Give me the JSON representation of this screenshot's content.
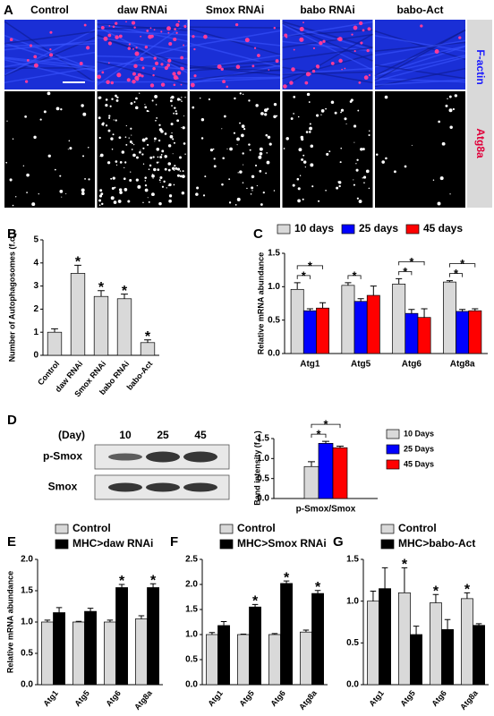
{
  "panel_a": {
    "letter": "A",
    "columns": [
      "Control",
      "daw RNAi",
      "Smox RNAi",
      "babo RNAi",
      "babo-Act"
    ],
    "rows": [
      "F-actin",
      "Atg8a"
    ]
  },
  "blot": {
    "letter": "D",
    "header": "(Day)",
    "lanes": [
      "10",
      "25",
      "45"
    ],
    "rows": [
      "p-Smox",
      "Smox"
    ]
  },
  "chart_data": [
    {
      "type": "bar",
      "letter": "B",
      "ylabel": "Number of Autophagosomes (f.c.)",
      "categories": [
        "Control",
        "daw RNAi",
        "Smox RNAi",
        "babo RNAi",
        "babo-Act"
      ],
      "values": [
        1.0,
        3.55,
        2.55,
        2.45,
        0.55
      ],
      "errors": [
        0.15,
        0.35,
        0.25,
        0.2,
        0.12
      ],
      "markers": [
        null,
        "*",
        "*",
        "*",
        "*"
      ],
      "color": "#d9d9d9",
      "ylim": [
        0,
        5
      ],
      "yticks": [
        0,
        1,
        2,
        3,
        4,
        5
      ]
    },
    {
      "type": "bar",
      "letter": "C",
      "ylabel": "Relative mRNA abundance",
      "categories": [
        "Atg1",
        "Atg5",
        "Atg6",
        "Atg8a"
      ],
      "series": [
        {
          "name": "10 days",
          "color": "#d9d9d9",
          "values": [
            0.96,
            1.02,
            1.04,
            1.07
          ],
          "errors": [
            0.1,
            0.04,
            0.08,
            0.02
          ]
        },
        {
          "name": "25 days",
          "color": "#0000ff",
          "values": [
            0.64,
            0.78,
            0.6,
            0.63
          ],
          "errors": [
            0.03,
            0.04,
            0.06,
            0.03
          ]
        },
        {
          "name": "45 days",
          "color": "#ff0000",
          "values": [
            0.68,
            0.87,
            0.54,
            0.64
          ],
          "errors": [
            0.08,
            0.14,
            0.13,
            0.03
          ]
        }
      ],
      "brackets": [
        {
          "category": "Atg1",
          "pair": [
            "10 days",
            "25 days"
          ],
          "label": "*"
        },
        {
          "category": "Atg1",
          "pair": [
            "10 days",
            "45 days"
          ],
          "label": "*"
        },
        {
          "category": "Atg5",
          "pair": [
            "10 days",
            "25 days"
          ],
          "label": "*"
        },
        {
          "category": "Atg6",
          "pair": [
            "10 days",
            "25 days"
          ],
          "label": "*"
        },
        {
          "category": "Atg6",
          "pair": [
            "10 days",
            "45 days"
          ],
          "label": "*"
        },
        {
          "category": "Atg8a",
          "pair": [
            "10 days",
            "25 days"
          ],
          "label": "*"
        },
        {
          "category": "Atg8a",
          "pair": [
            "10 days",
            "45 days"
          ],
          "label": "*"
        }
      ],
      "ylim": [
        0,
        1.5
      ],
      "yticks": [
        {
          "value": 0,
          "label": "0.0"
        },
        0.5,
        {
          "value": 1,
          "label": "1.0"
        },
        1.5
      ]
    },
    {
      "type": "bar",
      "ylabel": "Band intensity (f.c.)",
      "categories": [
        "p-Smox/Smox"
      ],
      "series": [
        {
          "name": "10 Days",
          "color": "#d9d9d9",
          "values": [
            0.8
          ],
          "errors": [
            0.12
          ]
        },
        {
          "name": "25 Days",
          "color": "#0000ff",
          "values": [
            1.38
          ],
          "errors": [
            0.05
          ]
        },
        {
          "name": "45 Days",
          "color": "#ff0000",
          "values": [
            1.27
          ],
          "errors": [
            0.04
          ]
        }
      ],
      "brackets": [
        {
          "category": "p-Smox/Smox",
          "pair": [
            "10 Days",
            "25 Days"
          ],
          "label": "*"
        },
        {
          "category": "p-Smox/Smox",
          "pair": [
            "10 Days",
            "45 Days"
          ],
          "label": "*"
        }
      ],
      "ylim": [
        0,
        1.5
      ],
      "yticks": [
        {
          "value": 0,
          "label": "0.0"
        },
        0.5,
        {
          "value": 1,
          "label": "1.0"
        },
        1.5
      ]
    },
    {
      "type": "bar",
      "letter": "E",
      "ylabel": "Relative mRNA abundance",
      "categories": [
        "Atg1",
        "Atg5",
        "Atg6",
        "Atg8a"
      ],
      "series": [
        {
          "name": "Control",
          "color": "#d9d9d9",
          "values": [
            1.0,
            1.0,
            1.0,
            1.05
          ],
          "errors": [
            0.03,
            0.01,
            0.03,
            0.05
          ]
        },
        {
          "name": "MHC>daw RNAi",
          "color": "#000000",
          "values": [
            1.15,
            1.17,
            1.55,
            1.55
          ],
          "errors": [
            0.08,
            0.05,
            0.05,
            0.06
          ],
          "markers": [
            null,
            null,
            "*",
            "*"
          ]
        }
      ],
      "ylim": [
        0,
        2
      ],
      "yticks": [
        {
          "value": 0,
          "label": "0.0"
        },
        0.5,
        {
          "value": 1,
          "label": "1.0"
        },
        1.5,
        {
          "value": 2,
          "label": "2.0"
        }
      ]
    },
    {
      "type": "bar",
      "letter": "F",
      "categories": [
        "Atg1",
        "Atg5",
        "Atg6",
        "Atg8a"
      ],
      "series": [
        {
          "name": "Control",
          "color": "#d9d9d9",
          "values": [
            1.0,
            1.0,
            1.0,
            1.05
          ],
          "errors": [
            0.04,
            0.01,
            0.02,
            0.04
          ]
        },
        {
          "name": "MHC>Smox RNAi",
          "color": "#000000",
          "values": [
            1.18,
            1.55,
            2.02,
            1.82
          ],
          "errors": [
            0.08,
            0.05,
            0.05,
            0.06
          ],
          "markers": [
            null,
            "*",
            "*",
            "*"
          ]
        }
      ],
      "ylim": [
        0,
        2.5
      ],
      "yticks": [
        {
          "value": 0,
          "label": "0.0"
        },
        0.5,
        {
          "value": 1,
          "label": "1.0"
        },
        1.5,
        {
          "value": 2,
          "label": "2.0"
        },
        2.5
      ]
    },
    {
      "type": "bar",
      "letter": "G",
      "categories": [
        "Atg1",
        "Atg5",
        "Atg6",
        "Atg8a"
      ],
      "series": [
        {
          "name": "Control",
          "color": "#d9d9d9",
          "values": [
            1.0,
            1.1,
            0.98,
            1.03
          ],
          "errors": [
            0.12,
            0.3,
            0.1,
            0.07
          ],
          "markers": [
            null,
            "*",
            "*",
            "*"
          ]
        },
        {
          "name": "MHC>babo-Act",
          "color": "#000000",
          "values": [
            1.15,
            0.6,
            0.66,
            0.71
          ],
          "errors": [
            0.25,
            0.1,
            0.12,
            0.02
          ]
        }
      ],
      "ylim": [
        0,
        1.5
      ],
      "yticks": [
        {
          "value": 0,
          "label": "0.0"
        },
        0.5,
        {
          "value": 1,
          "label": "1.0"
        },
        1.5
      ]
    }
  ]
}
